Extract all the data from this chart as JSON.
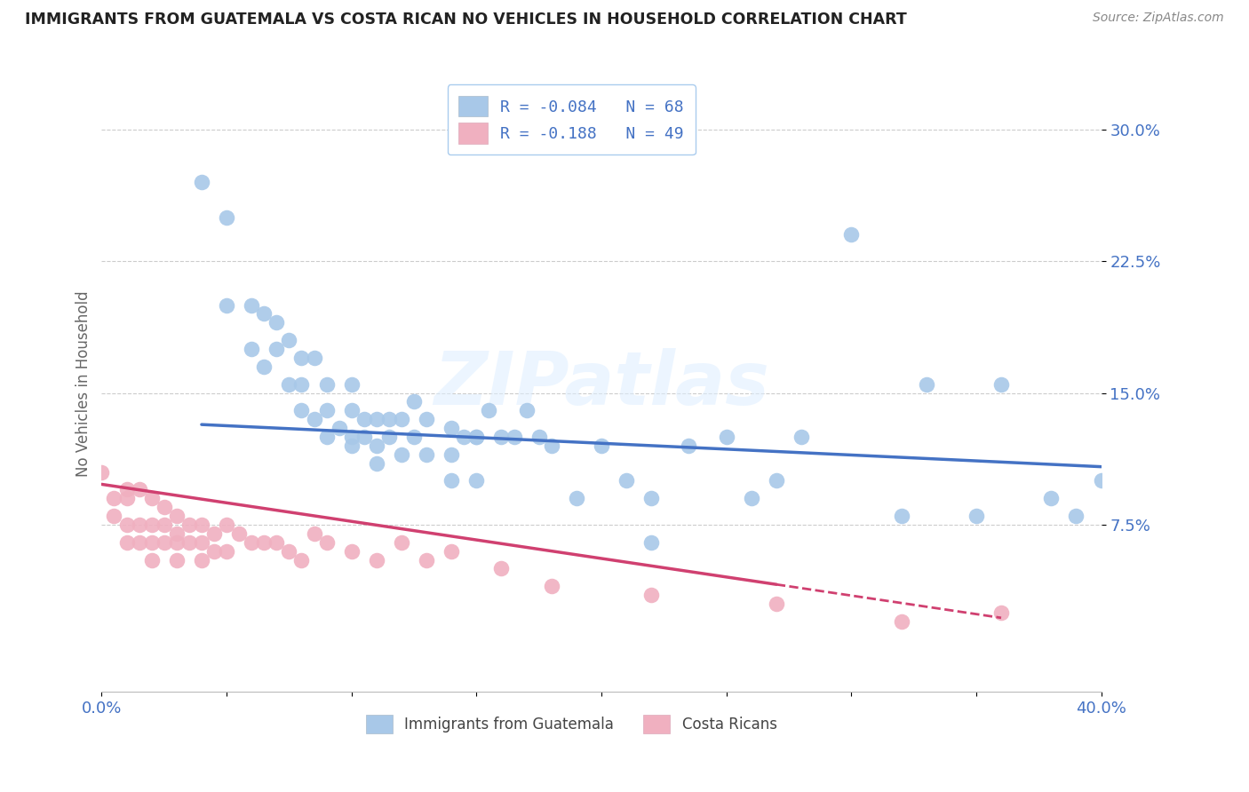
{
  "title": "IMMIGRANTS FROM GUATEMALA VS COSTA RICAN NO VEHICLES IN HOUSEHOLD CORRELATION CHART",
  "source": "Source: ZipAtlas.com",
  "ylabel": "No Vehicles in Household",
  "yticks": [
    "7.5%",
    "15.0%",
    "22.5%",
    "30.0%"
  ],
  "ytick_vals": [
    0.075,
    0.15,
    0.225,
    0.3
  ],
  "xlim": [
    0.0,
    0.4
  ],
  "ylim": [
    -0.02,
    0.33
  ],
  "legend_label1": "R = -0.084   N = 68",
  "legend_label2": "R = -0.188   N = 49",
  "series1_color": "#a8c8e8",
  "series2_color": "#f0b0c0",
  "trendline1_color": "#4472c4",
  "trendline2_color": "#d04070",
  "watermark": "ZIPatlas",
  "scatter1_x": [
    0.04,
    0.05,
    0.05,
    0.06,
    0.06,
    0.065,
    0.065,
    0.07,
    0.07,
    0.075,
    0.075,
    0.08,
    0.08,
    0.08,
    0.085,
    0.085,
    0.09,
    0.09,
    0.09,
    0.095,
    0.1,
    0.1,
    0.1,
    0.1,
    0.105,
    0.105,
    0.11,
    0.11,
    0.11,
    0.115,
    0.115,
    0.12,
    0.12,
    0.125,
    0.125,
    0.13,
    0.13,
    0.14,
    0.14,
    0.14,
    0.145,
    0.15,
    0.15,
    0.155,
    0.16,
    0.165,
    0.17,
    0.175,
    0.18,
    0.19,
    0.2,
    0.21,
    0.22,
    0.235,
    0.25,
    0.26,
    0.27,
    0.3,
    0.32,
    0.33,
    0.35,
    0.36,
    0.38,
    0.39,
    0.4,
    0.28,
    0.15,
    0.22
  ],
  "scatter1_y": [
    0.27,
    0.25,
    0.2,
    0.2,
    0.175,
    0.195,
    0.165,
    0.19,
    0.175,
    0.18,
    0.155,
    0.17,
    0.155,
    0.14,
    0.17,
    0.135,
    0.155,
    0.14,
    0.125,
    0.13,
    0.155,
    0.14,
    0.125,
    0.12,
    0.135,
    0.125,
    0.135,
    0.12,
    0.11,
    0.135,
    0.125,
    0.135,
    0.115,
    0.145,
    0.125,
    0.135,
    0.115,
    0.13,
    0.115,
    0.1,
    0.125,
    0.125,
    0.1,
    0.14,
    0.125,
    0.125,
    0.14,
    0.125,
    0.12,
    0.09,
    0.12,
    0.1,
    0.09,
    0.12,
    0.125,
    0.09,
    0.1,
    0.24,
    0.08,
    0.155,
    0.08,
    0.155,
    0.09,
    0.08,
    0.1,
    0.125,
    0.125,
    0.065
  ],
  "scatter2_x": [
    0.0,
    0.005,
    0.005,
    0.01,
    0.01,
    0.01,
    0.01,
    0.015,
    0.015,
    0.015,
    0.02,
    0.02,
    0.02,
    0.02,
    0.025,
    0.025,
    0.025,
    0.03,
    0.03,
    0.03,
    0.03,
    0.035,
    0.035,
    0.04,
    0.04,
    0.04,
    0.045,
    0.045,
    0.05,
    0.05,
    0.055,
    0.06,
    0.065,
    0.07,
    0.075,
    0.08,
    0.085,
    0.09,
    0.1,
    0.11,
    0.12,
    0.13,
    0.14,
    0.16,
    0.18,
    0.22,
    0.27,
    0.32,
    0.36
  ],
  "scatter2_y": [
    0.105,
    0.09,
    0.08,
    0.095,
    0.09,
    0.075,
    0.065,
    0.095,
    0.075,
    0.065,
    0.09,
    0.075,
    0.065,
    0.055,
    0.085,
    0.075,
    0.065,
    0.08,
    0.07,
    0.065,
    0.055,
    0.075,
    0.065,
    0.075,
    0.065,
    0.055,
    0.07,
    0.06,
    0.075,
    0.06,
    0.07,
    0.065,
    0.065,
    0.065,
    0.06,
    0.055,
    0.07,
    0.065,
    0.06,
    0.055,
    0.065,
    0.055,
    0.06,
    0.05,
    0.04,
    0.035,
    0.03,
    0.02,
    0.025
  ],
  "legend_bottom_label1": "Immigrants from Guatemala",
  "legend_bottom_label2": "Costa Ricans",
  "trendline1_x": [
    0.04,
    0.4
  ],
  "trendline1_y": [
    0.132,
    0.108
  ],
  "trendline2_x": [
    0.0,
    0.36
  ],
  "trendline2_y": [
    0.098,
    0.022
  ]
}
